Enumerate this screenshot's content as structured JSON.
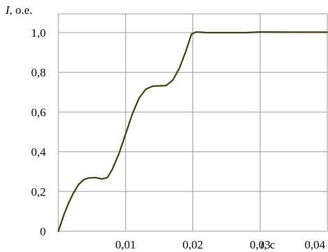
{
  "chart_data": {
    "type": "line",
    "title": "",
    "ylabel": {
      "symbol": "I",
      "unit": ", о.е."
    },
    "xlabel": {
      "symbol": "t",
      "unit": ", с"
    },
    "xlim": [
      0,
      0.04
    ],
    "ylim": [
      0,
      1.0
    ],
    "x_ticks": [
      {
        "value": 0.01,
        "label": "0,01"
      },
      {
        "value": 0.02,
        "label": "0,02"
      },
      {
        "value": 0.03,
        "label": "0,03"
      },
      {
        "value": 0.04,
        "label": "0,04"
      }
    ],
    "y_ticks": [
      {
        "value": 0,
        "label": "0"
      },
      {
        "value": 0.2,
        "label": "0,2"
      },
      {
        "value": 0.4,
        "label": "0,4"
      },
      {
        "value": 0.6,
        "label": "0,6"
      },
      {
        "value": 0.8,
        "label": "0,8"
      },
      {
        "value": 1.0,
        "label": "1,0"
      }
    ],
    "grid": true,
    "line_color": "#3d3d12",
    "series": [
      {
        "x": [
          0,
          0.0008,
          0.0015,
          0.0022,
          0.003,
          0.0038,
          0.0045,
          0.0055,
          0.0065,
          0.0073,
          0.008,
          0.009,
          0.01,
          0.011,
          0.012,
          0.013,
          0.014,
          0.015,
          0.016,
          0.017,
          0.018,
          0.019,
          0.0198,
          0.0205,
          0.021,
          0.022,
          0.025,
          0.028,
          0.03,
          0.035,
          0.04
        ],
        "y": [
          0,
          0.08,
          0.14,
          0.19,
          0.235,
          0.26,
          0.268,
          0.27,
          0.263,
          0.27,
          0.31,
          0.39,
          0.49,
          0.59,
          0.67,
          0.715,
          0.73,
          0.732,
          0.733,
          0.76,
          0.82,
          0.91,
          0.993,
          1.003,
          1.002,
          1.0,
          1.0,
          1.0,
          1.003,
          1.002,
          1.002
        ]
      }
    ]
  }
}
